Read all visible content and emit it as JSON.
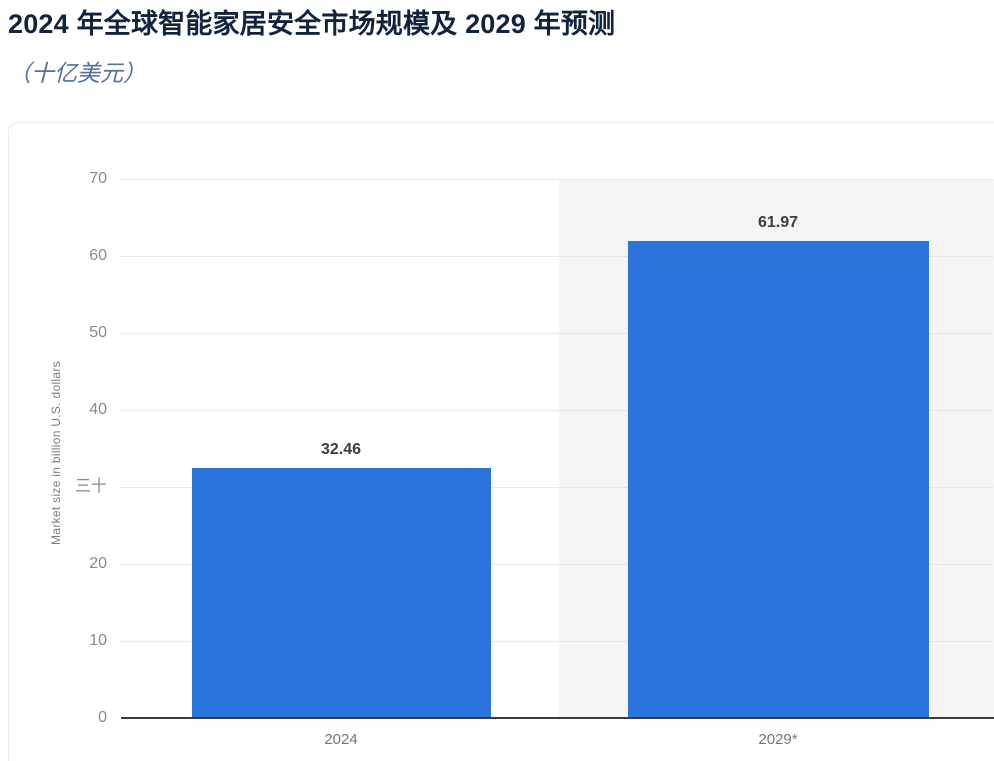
{
  "header": {
    "title": "2024 年全球智能家居安全市场规模及 2029 年预测",
    "subtitle": "（十亿美元）"
  },
  "chart_data": {
    "type": "bar",
    "title": "2024 年全球智能家居安全市场规模及 2029 年预测",
    "subtitle": "（十亿美元）",
    "categories": [
      "2024",
      "2029*"
    ],
    "values": [
      32.46,
      61.97
    ],
    "value_labels": [
      "32.46",
      "61.97"
    ],
    "xlabel": "",
    "ylabel": "Market size in billion U.S. dollars",
    "ylim": [
      0,
      70
    ],
    "yticks": [
      0,
      10,
      20,
      30,
      40,
      50,
      60,
      70
    ],
    "ytick_labels_top_down": [
      "70",
      "60",
      "50",
      "40",
      "三十",
      "20",
      "10",
      "0"
    ],
    "grid": "horizontal dotted gridlines on",
    "legend": "none",
    "highlighted_column": "2029*"
  },
  "colors": {
    "title_text": "#12233f",
    "subtitle_text": "#54719c",
    "bar": "#2b73dd",
    "highlight_band": "#f5f5f7",
    "gridline": "#d7d7d7",
    "axis_baseline": "#3c3c3c",
    "tick_text": "#8a8a8a",
    "value_label_text": "#3d3d3d",
    "card_border": "#e9e9ee"
  }
}
